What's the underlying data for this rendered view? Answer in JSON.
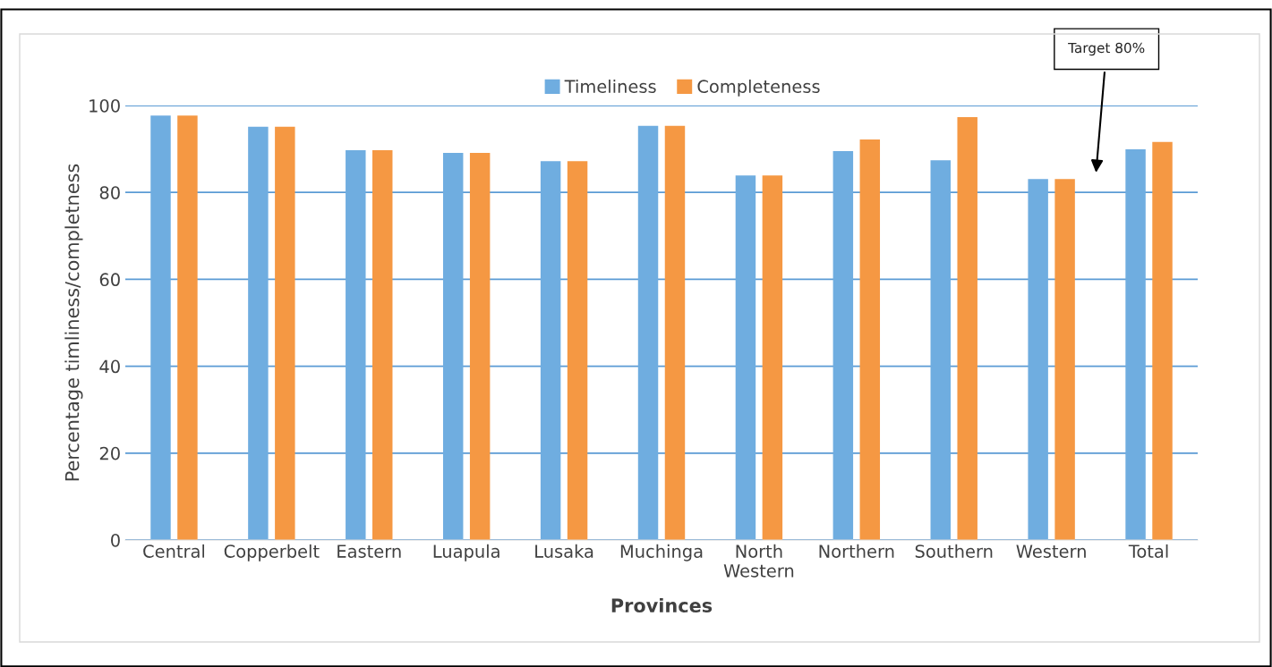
{
  "chart_data": {
    "type": "bar",
    "xlabel": "Provinces",
    "ylabel": "Percentage timliness/completness",
    "categories": [
      "Central",
      "Copperbelt",
      "Eastern",
      "Luapula",
      "Lusaka",
      "Muchinga",
      "North\nWestern",
      "Northern",
      "Southern",
      "Western",
      "Total"
    ],
    "series": [
      {
        "name": "Timeliness",
        "color": "#6fade0",
        "values": [
          97.7,
          95.1,
          89.7,
          89.1,
          87.2,
          95.3,
          83.9,
          89.5,
          87.4,
          83.1,
          89.9
        ]
      },
      {
        "name": "Completeness",
        "color": "#f59843",
        "values": [
          97.7,
          95.1,
          89.7,
          89.1,
          87.2,
          95.3,
          83.9,
          92.2,
          97.3,
          83.1,
          91.6
        ]
      }
    ],
    "ylim": [
      0,
      100
    ],
    "yticks": [
      0,
      20,
      40,
      60,
      80,
      100
    ],
    "grid": "y",
    "legend": "top",
    "annotations": [
      "Target 80%"
    ]
  }
}
